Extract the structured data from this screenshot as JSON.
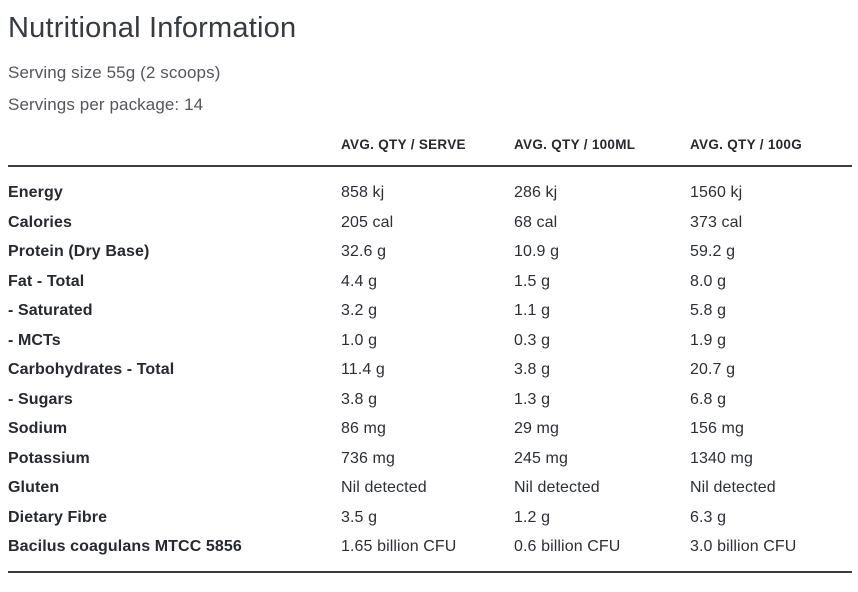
{
  "page": {
    "title": "Nutritional Information",
    "serving_size": "Serving size 55g (2 scoops)",
    "servings_per_package": "Servings per package: 14"
  },
  "table": {
    "columns": [
      "",
      "AVG. QTY / SERVE",
      "AVG. QTY / 100ML",
      "AVG. QTY / 100G"
    ],
    "rows": [
      {
        "label": "Energy",
        "per_serve": "858 kj",
        "per_100ml": "286 kj",
        "per_100g": "1560 kj"
      },
      {
        "label": "Calories",
        "per_serve": "205 cal",
        "per_100ml": "68 cal",
        "per_100g": "373 cal"
      },
      {
        "label": "Protein (Dry Base)",
        "per_serve": "32.6 g",
        "per_100ml": "10.9 g",
        "per_100g": "59.2 g"
      },
      {
        "label": "Fat - Total",
        "per_serve": "4.4 g",
        "per_100ml": "1.5 g",
        "per_100g": "8.0 g"
      },
      {
        "label": "- Saturated",
        "per_serve": "3.2 g",
        "per_100ml": "1.1 g",
        "per_100g": "5.8 g"
      },
      {
        "label": "- MCTs",
        "per_serve": "1.0 g",
        "per_100ml": "0.3 g",
        "per_100g": "1.9 g"
      },
      {
        "label": "Carbohydrates - Total",
        "per_serve": "11.4 g",
        "per_100ml": "3.8 g",
        "per_100g": "20.7 g"
      },
      {
        "label": "- Sugars",
        "per_serve": "3.8 g",
        "per_100ml": "1.3 g",
        "per_100g": "6.8 g"
      },
      {
        "label": "Sodium",
        "per_serve": "86 mg",
        "per_100ml": "29 mg",
        "per_100g": "156 mg"
      },
      {
        "label": "Potassium",
        "per_serve": "736 mg",
        "per_100ml": "245 mg",
        "per_100g": "1340 mg"
      },
      {
        "label": "Gluten",
        "per_serve": "Nil detected",
        "per_100ml": "Nil detected",
        "per_100g": "Nil detected"
      },
      {
        "label": "Dietary Fibre",
        "per_serve": "3.5 g",
        "per_100ml": "1.2 g",
        "per_100g": "6.3 g"
      },
      {
        "label": "Bacilus coagulans MTCC 5856",
        "per_serve": "1.65 billion CFU",
        "per_100ml": "0.6 billion CFU",
        "per_100g": "3.0 billion CFU"
      }
    ]
  },
  "colors": {
    "title_text": "#363a41",
    "subtitle_text": "#53565b",
    "table_text": "#2b2f36",
    "rule_line": "#3d3d3d",
    "background": "#ffffff"
  },
  "chart_data": {
    "type": "table",
    "title": "Nutritional Information",
    "subtitle": [
      "Serving size 55g (2 scoops)",
      "Servings per package: 14"
    ],
    "columns": [
      "",
      "AVG. QTY / SERVE",
      "AVG. QTY / 100ML",
      "AVG. QTY / 100G"
    ],
    "rows": [
      [
        "Energy",
        "858 kj",
        "286 kj",
        "1560 kj"
      ],
      [
        "Calories",
        "205 cal",
        "68 cal",
        "373 cal"
      ],
      [
        "Protein (Dry Base)",
        "32.6 g",
        "10.9 g",
        "59.2 g"
      ],
      [
        "Fat - Total",
        "4.4 g",
        "1.5 g",
        "8.0 g"
      ],
      [
        "- Saturated",
        "3.2 g",
        "1.1 g",
        "5.8 g"
      ],
      [
        "- MCTs",
        "1.0 g",
        "0.3 g",
        "1.9 g"
      ],
      [
        "Carbohydrates - Total",
        "11.4 g",
        "3.8 g",
        "20.7 g"
      ],
      [
        "- Sugars",
        "3.8 g",
        "1.3 g",
        "6.8 g"
      ],
      [
        "Sodium",
        "86 mg",
        "29 mg",
        "156 mg"
      ],
      [
        "Potassium",
        "736 mg",
        "245 mg",
        "1340 mg"
      ],
      [
        "Gluten",
        "Nil detected",
        "Nil detected",
        "Nil detected"
      ],
      [
        "Dietary Fibre",
        "3.5 g",
        "1.2 g",
        "6.3 g"
      ],
      [
        "Bacilus coagulans MTCC 5856",
        "1.65 billion CFU",
        "0.6 billion CFU",
        "3.0 billion CFU"
      ]
    ]
  }
}
